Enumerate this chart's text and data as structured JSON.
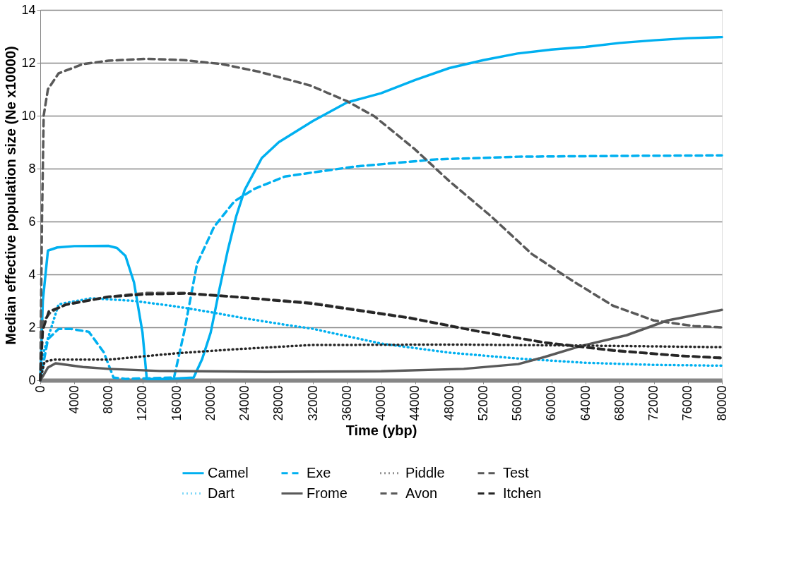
{
  "chart_data": {
    "type": "line",
    "xlabel": "Time (ybp)",
    "ylabel": "Median effective population size (Ne x10000)",
    "xlim": [
      0,
      80000
    ],
    "xticks": [
      0,
      4000,
      8000,
      12000,
      16000,
      20000,
      24000,
      28000,
      32000,
      36000,
      40000,
      44000,
      48000,
      52000,
      56000,
      60000,
      64000,
      68000,
      72000,
      76000,
      80000
    ],
    "ylim": [
      0,
      14
    ],
    "yticks": [
      0,
      2,
      4,
      6,
      8,
      10,
      12,
      14
    ],
    "grid": "y",
    "legend": "bottom",
    "series": [
      {
        "name": "Camel",
        "color": "#00b0f0",
        "line_style": "solid",
        "x": [
          0,
          300,
          900,
          2000,
          4000,
          8000,
          9000,
          10000,
          11000,
          12000,
          12500,
          15000,
          18000,
          19000,
          20000,
          21000,
          22000,
          23000,
          24000,
          26000,
          28000,
          30000,
          32000,
          36000,
          40000,
          44000,
          48000,
          52000,
          56000,
          60000,
          64000,
          68000,
          72000,
          76000,
          80000
        ],
        "values": [
          0,
          3,
          4.9,
          5.02,
          5.07,
          5.08,
          5.0,
          4.7,
          3.7,
          1.8,
          0.05,
          0.05,
          0.1,
          0.8,
          1.8,
          3.4,
          4.9,
          6.2,
          7.2,
          8.4,
          9.0,
          9.4,
          9.8,
          10.5,
          10.85,
          11.35,
          11.8,
          12.1,
          12.35,
          12.5,
          12.6,
          12.75,
          12.85,
          12.93,
          12.97
        ]
      },
      {
        "name": "Dart",
        "color": "#00b0f0",
        "line_style": "dotted",
        "x": [
          0,
          330,
          2150,
          6000,
          11000,
          15700,
          19900,
          24000,
          28700,
          31900,
          40100,
          48100,
          56100,
          64000,
          72000,
          80000
        ],
        "values": [
          0,
          1.0,
          2.87,
          3.1,
          3.0,
          2.8,
          2.58,
          2.34,
          2.1,
          1.95,
          1.38,
          1.04,
          0.82,
          0.66,
          0.58,
          0.55
        ]
      },
      {
        "name": "Exe",
        "color": "#00b0f0",
        "line_style": "dashed",
        "x": [
          0,
          900,
          2150,
          3600,
          5700,
          7450,
          8600,
          10000,
          15700,
          16900,
          18400,
          20400,
          22800,
          25100,
          28700,
          31900,
          37000,
          46500,
          56100,
          68000,
          80000
        ],
        "values": [
          0,
          1.55,
          1.94,
          1.94,
          1.83,
          1.06,
          0.1,
          0.05,
          0.1,
          1.84,
          4.4,
          5.8,
          6.77,
          7.23,
          7.7,
          7.85,
          8.08,
          8.35,
          8.45,
          8.48,
          8.5
        ]
      },
      {
        "name": "Frome",
        "color": "#595959",
        "line_style": "solid",
        "x": [
          0,
          400,
          900,
          1800,
          5000,
          8000,
          14000,
          26500,
          40000,
          49700,
          56100,
          59200,
          63400,
          68800,
          73600,
          80000
        ],
        "values": [
          0,
          0.2,
          0.48,
          0.64,
          0.5,
          0.43,
          0.35,
          0.32,
          0.34,
          0.43,
          0.61,
          0.88,
          1.29,
          1.7,
          2.26,
          2.66
        ]
      },
      {
        "name": "Piddle",
        "color": "#262626",
        "line_style": "dotted",
        "x": [
          0,
          500,
          1600,
          8000,
          16000,
          22800,
          31700,
          48000,
          64000,
          80000
        ],
        "values": [
          0,
          0.7,
          0.78,
          0.78,
          1.02,
          1.17,
          1.33,
          1.35,
          1.31,
          1.25
        ]
      },
      {
        "name": "Avon",
        "color": "#595959",
        "line_style": "dashed",
        "x": [
          0,
          200,
          400,
          900,
          2150,
          5000,
          8000,
          12500,
          16900,
          21300,
          25700,
          31700,
          36000,
          39200,
          43900,
          48000,
          52900,
          57700,
          62500,
          67200,
          72000,
          76700,
          80000
        ],
        "values": [
          0,
          6,
          10.0,
          11.0,
          11.6,
          11.95,
          12.08,
          12.15,
          12.1,
          11.95,
          11.66,
          11.14,
          10.55,
          9.98,
          8.75,
          7.53,
          6.2,
          4.77,
          3.75,
          2.82,
          2.26,
          2.05,
          2.0
        ]
      },
      {
        "name": "Test",
        "color": "#595959",
        "line_style": "dashed",
        "x": [
          0,
          300,
          1200,
          3000,
          8000,
          12500,
          16900,
          22800,
          31700,
          43300,
          51300,
          59200,
          67200,
          75100,
          80000
        ],
        "values": [
          0,
          2.2,
          2.57,
          2.87,
          3.16,
          3.3,
          3.3,
          3.16,
          2.93,
          2.37,
          1.86,
          1.43,
          1.14,
          0.93,
          0.83
        ]
      },
      {
        "name": "Itchen",
        "color": "#262626",
        "line_style": "dashed",
        "x": [
          0,
          300,
          1000,
          3000,
          8000,
          12500,
          17000,
          22800,
          31700,
          43300,
          51300,
          59200,
          67200,
          75100,
          80000
        ],
        "values": [
          0,
          1.9,
          2.6,
          2.85,
          3.15,
          3.25,
          3.28,
          3.15,
          2.9,
          2.35,
          1.85,
          1.42,
          1.12,
          0.92,
          0.85
        ]
      }
    ]
  }
}
